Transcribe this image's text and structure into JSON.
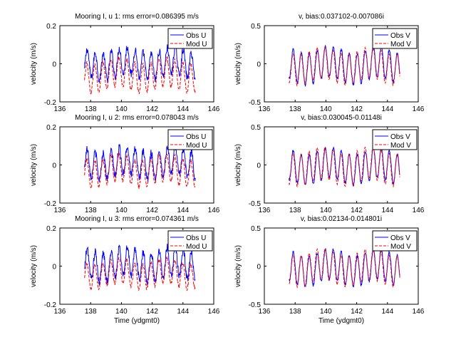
{
  "figure": {
    "background": "#ffffff"
  },
  "colors": {
    "obs": "#0000ff",
    "mod": "#ff0000",
    "axes": "#000000"
  },
  "chart_data": [
    {
      "type": "line",
      "row": 0,
      "col": 0,
      "title": "Mooring I, u 1: rms error=0.086395 m/s",
      "xlabel": "",
      "ylabel": "velocity (m/s)",
      "xlim": [
        136,
        146
      ],
      "ylim": [
        -0.2,
        0.2
      ],
      "xticks": [
        136,
        138,
        140,
        142,
        144,
        146
      ],
      "yticks": [
        -0.2,
        0,
        0.2
      ],
      "tick_labels_y": [
        "-0.2",
        "0",
        "0.2"
      ],
      "legend": {
        "position": "top-right",
        "entries": [
          "Obs U",
          "Mod U"
        ]
      },
      "series": [
        {
          "name": "Obs U",
          "style": "solid",
          "x_start": 137.6,
          "x_end": 144.8,
          "mean": 0.0,
          "amplitude": 0.07,
          "period": 0.52,
          "phase": 0.3,
          "noise": 0.02
        },
        {
          "name": "Mod U",
          "style": "dashed",
          "x_start": 137.6,
          "x_end": 144.8,
          "mean": -0.06,
          "amplitude": 0.075,
          "period": 0.52,
          "phase": 0.35,
          "noise": 0.01
        }
      ]
    },
    {
      "type": "line",
      "row": 0,
      "col": 1,
      "title": "v, bias:0.037102-0.007086i",
      "xlabel": "",
      "ylabel": "velocity (m/s)",
      "xlim": [
        136,
        146
      ],
      "ylim": [
        -0.5,
        0.5
      ],
      "xticks": [
        136,
        138,
        140,
        142,
        144,
        146
      ],
      "yticks": [
        -0.5,
        0,
        0.5
      ],
      "tick_labels_y": [
        "-0.5",
        "0",
        "0.5"
      ],
      "legend": {
        "position": "top-right",
        "entries": [
          "Obs V",
          "Mod V"
        ]
      },
      "series": [
        {
          "name": "Obs V",
          "style": "solid",
          "x_start": 137.6,
          "x_end": 144.8,
          "mean": -0.02,
          "amplitude": 0.2,
          "period": 0.52,
          "phase": 0.1,
          "noise": 0.02
        },
        {
          "name": "Mod V",
          "style": "dashed",
          "x_start": 137.6,
          "x_end": 144.8,
          "mean": -0.03,
          "amplitude": 0.2,
          "period": 0.52,
          "phase": 0.12,
          "noise": 0.01
        }
      ]
    },
    {
      "type": "line",
      "row": 1,
      "col": 0,
      "title": "Mooring I, u 2: rms error=0.078043 m/s",
      "xlabel": "",
      "ylabel": "velocity (m/s)",
      "xlim": [
        136,
        146
      ],
      "ylim": [
        -0.2,
        0.2
      ],
      "xticks": [
        136,
        138,
        140,
        142,
        144,
        146
      ],
      "yticks": [
        -0.2,
        0,
        0.2
      ],
      "tick_labels_y": [
        "-0.2",
        "0",
        "0.2"
      ],
      "legend": {
        "position": "top-right",
        "entries": [
          "Obs U",
          "Mod U"
        ]
      },
      "series": [
        {
          "name": "Obs U",
          "style": "solid",
          "x_start": 137.6,
          "x_end": 144.8,
          "mean": 0.01,
          "amplitude": 0.07,
          "period": 0.52,
          "phase": 0.3,
          "noise": 0.02
        },
        {
          "name": "Mod U",
          "style": "dashed",
          "x_start": 137.6,
          "x_end": 144.8,
          "mean": -0.03,
          "amplitude": 0.07,
          "period": 0.52,
          "phase": 0.35,
          "noise": 0.01
        }
      ]
    },
    {
      "type": "line",
      "row": 1,
      "col": 1,
      "title": "v, bias:0.030045-0.01148i",
      "xlabel": "",
      "ylabel": "velocity (m/s)",
      "xlim": [
        136,
        146
      ],
      "ylim": [
        -0.5,
        0.5
      ],
      "xticks": [
        136,
        138,
        140,
        142,
        144,
        146
      ],
      "yticks": [
        -0.5,
        0,
        0.5
      ],
      "tick_labels_y": [
        "-0.5",
        "0",
        "0.5"
      ],
      "legend": {
        "position": "top-right",
        "entries": [
          "Obs V",
          "Mod V"
        ]
      },
      "series": [
        {
          "name": "Obs V",
          "style": "solid",
          "x_start": 137.6,
          "x_end": 144.8,
          "mean": -0.02,
          "amplitude": 0.2,
          "period": 0.52,
          "phase": 0.1,
          "noise": 0.02
        },
        {
          "name": "Mod V",
          "style": "dashed",
          "x_start": 137.6,
          "x_end": 144.8,
          "mean": -0.02,
          "amplitude": 0.21,
          "period": 0.52,
          "phase": 0.12,
          "noise": 0.01
        }
      ]
    },
    {
      "type": "line",
      "row": 2,
      "col": 0,
      "title": "Mooring I, u 3: rms error=0.074361 m/s",
      "xlabel": "Time (ydgmt0)",
      "ylabel": "velocity (m/s)",
      "xlim": [
        136,
        146
      ],
      "ylim": [
        -0.2,
        0.2
      ],
      "xticks": [
        136,
        138,
        140,
        142,
        144,
        146
      ],
      "yticks": [
        -0.2,
        0,
        0.2
      ],
      "tick_labels_y": [
        "-0.2",
        "0",
        "0.2"
      ],
      "legend": {
        "position": "top-right",
        "entries": [
          "Obs U",
          "Mod U"
        ]
      },
      "series": [
        {
          "name": "Obs U",
          "style": "solid",
          "x_start": 137.6,
          "x_end": 144.8,
          "mean": 0.01,
          "amplitude": 0.075,
          "period": 0.52,
          "phase": 0.3,
          "noise": 0.02
        },
        {
          "name": "Mod U",
          "style": "dashed",
          "x_start": 137.6,
          "x_end": 144.8,
          "mean": -0.04,
          "amplitude": 0.065,
          "period": 0.52,
          "phase": 0.35,
          "noise": 0.01
        }
      ]
    },
    {
      "type": "line",
      "row": 2,
      "col": 1,
      "title": "v, bias:0.02134-0.014801i",
      "xlabel": "Time (ydgmt0)",
      "ylabel": "velocity (m/s)",
      "xlim": [
        136,
        146
      ],
      "ylim": [
        -0.5,
        0.5
      ],
      "xticks": [
        136,
        138,
        140,
        142,
        144,
        146
      ],
      "yticks": [
        -0.5,
        0,
        0.5
      ],
      "tick_labels_y": [
        "-0.5",
        "0",
        "0.5"
      ],
      "legend": {
        "position": "top-right",
        "entries": [
          "Obs V",
          "Mod V"
        ]
      },
      "series": [
        {
          "name": "Obs V",
          "style": "solid",
          "x_start": 137.6,
          "x_end": 144.8,
          "mean": -0.02,
          "amplitude": 0.2,
          "period": 0.52,
          "phase": 0.1,
          "noise": 0.02
        },
        {
          "name": "Mod V",
          "style": "dashed",
          "x_start": 137.6,
          "x_end": 144.8,
          "mean": -0.02,
          "amplitude": 0.2,
          "period": 0.52,
          "phase": 0.12,
          "noise": 0.01
        }
      ]
    }
  ]
}
